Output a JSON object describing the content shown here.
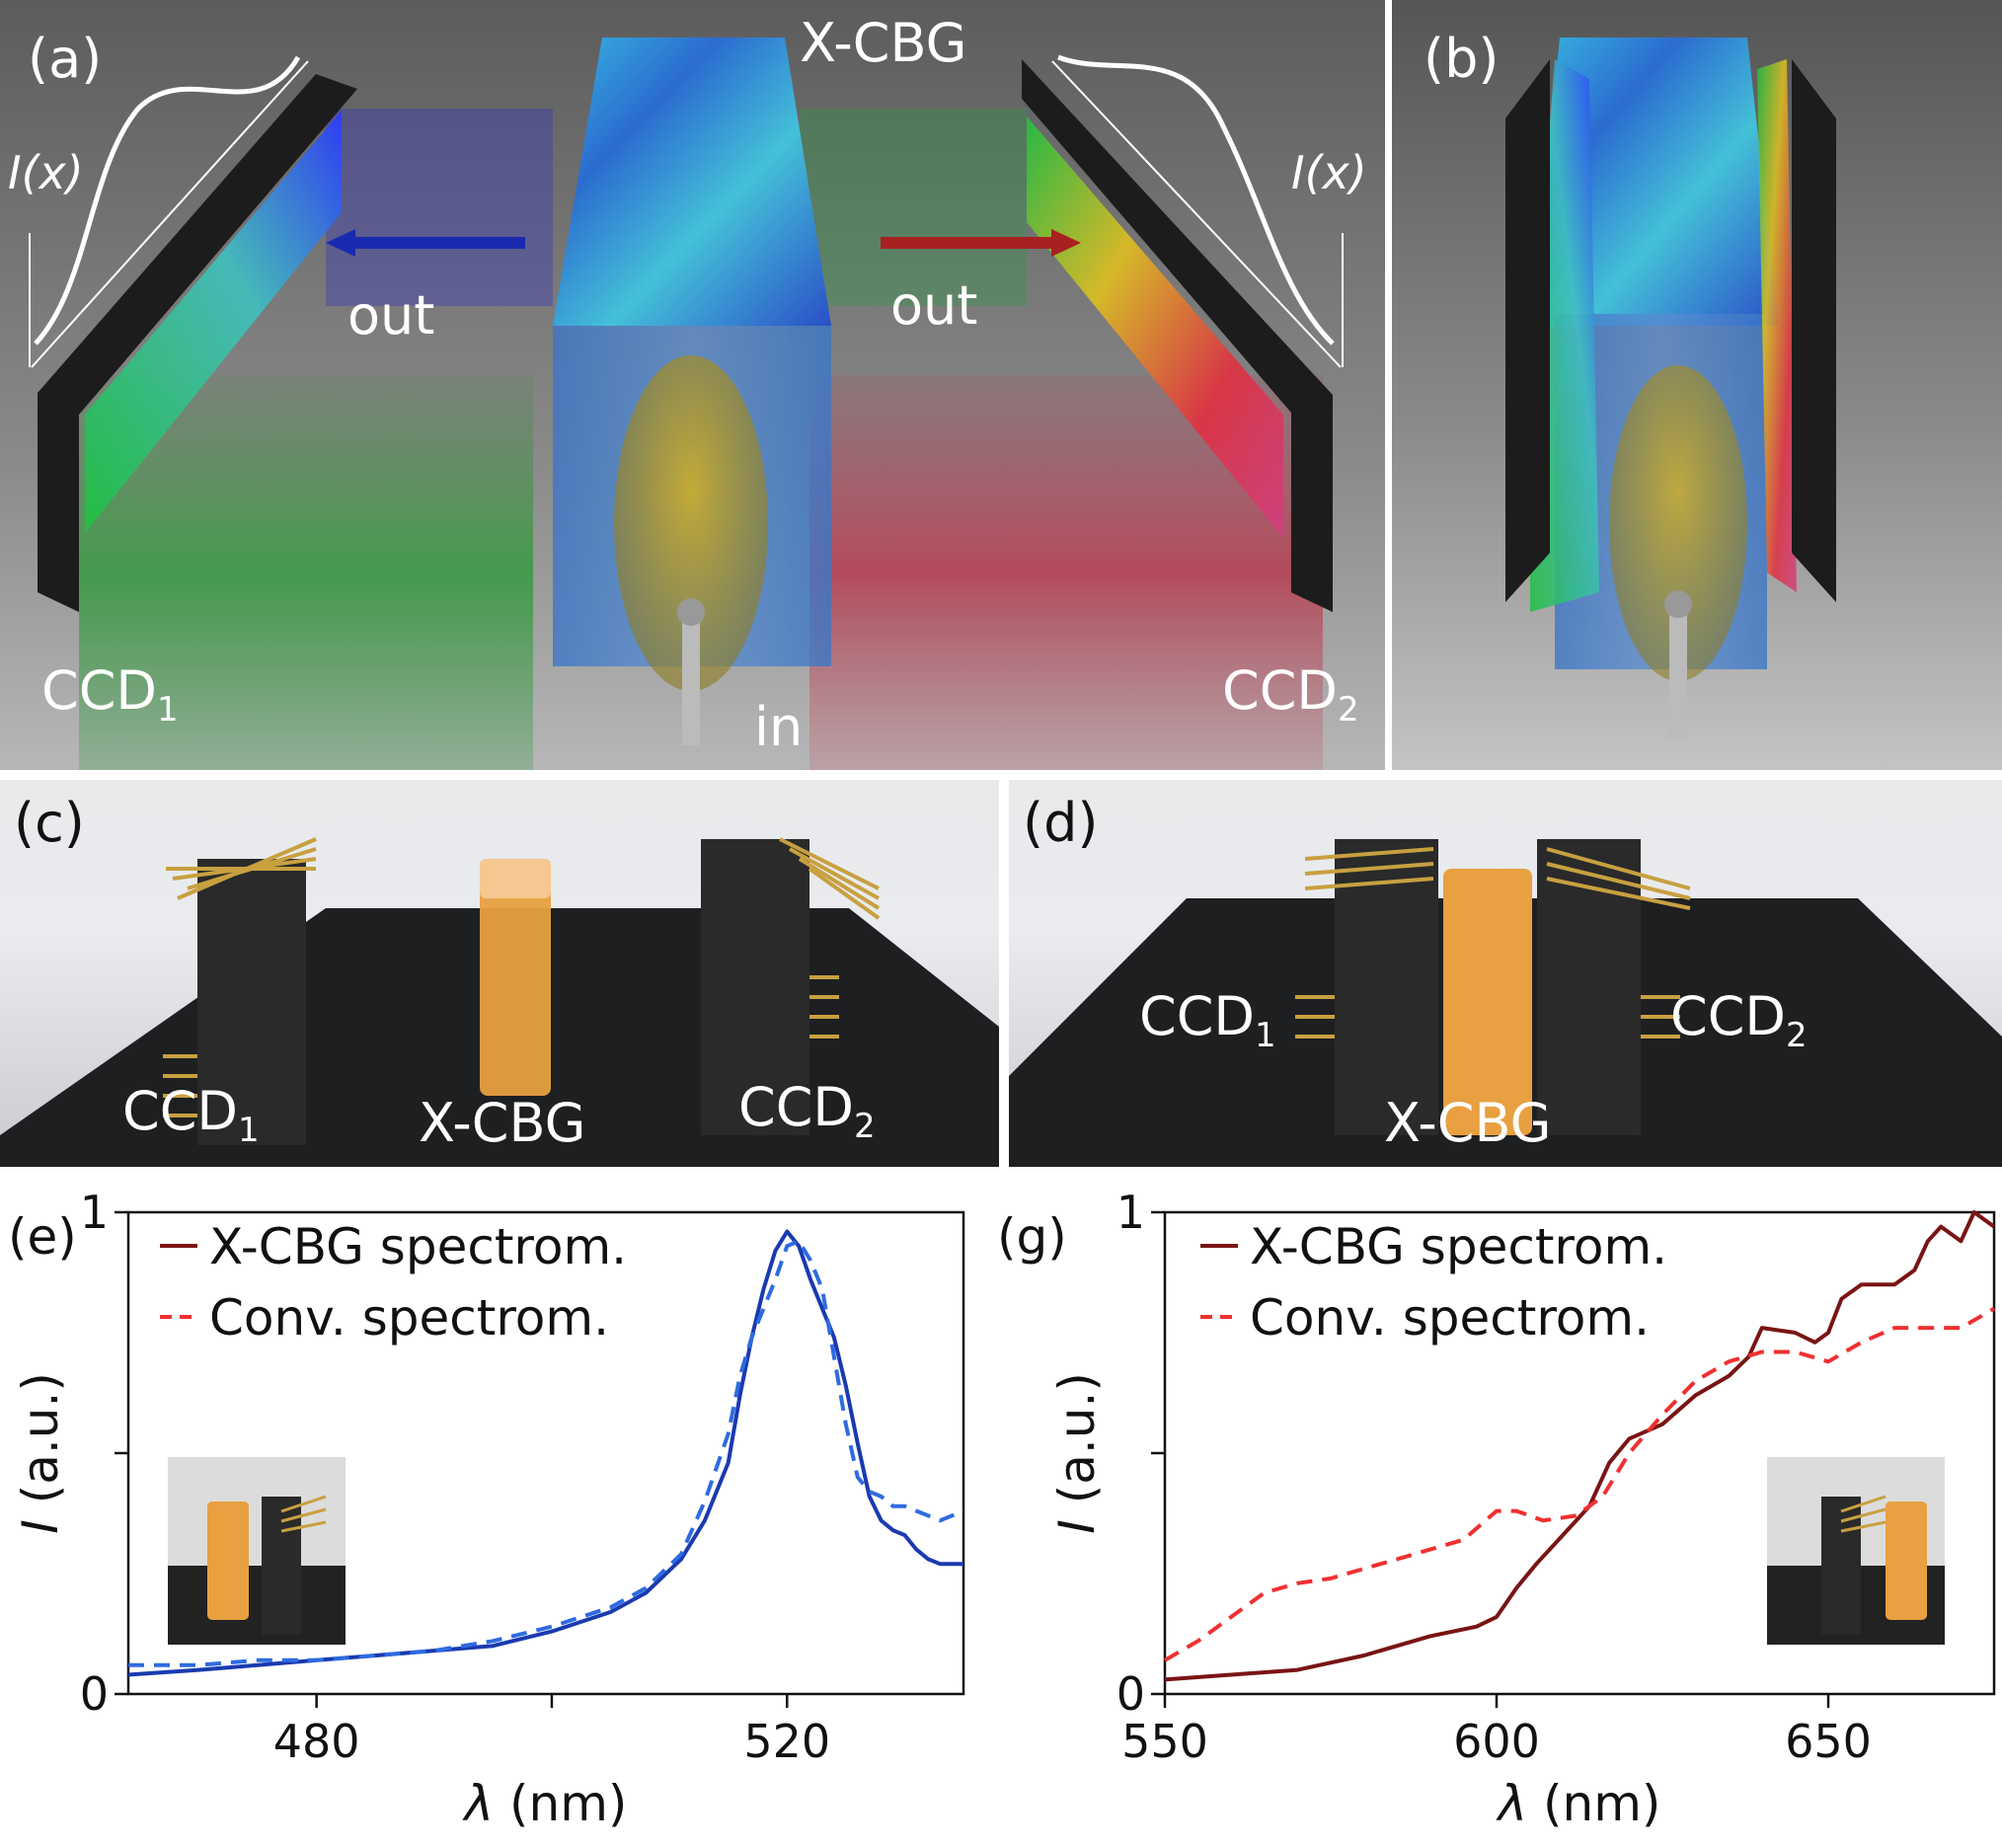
{
  "panels": {
    "a": {
      "label": "(a)",
      "grating": "X-CBG",
      "out_left": "out",
      "out_right": "out",
      "in": "in",
      "ccd1": "CCD",
      "ccd1_sub": "1",
      "ccd2": "CCD",
      "ccd2_sub": "2",
      "intensity_left": "I(x)",
      "intensity_right": "I(x)"
    },
    "b": {
      "label": "(b)"
    },
    "c": {
      "label": "(c)",
      "ccd1": "CCD",
      "ccd1_sub": "1",
      "grating": "X-CBG",
      "ccd2": "CCD",
      "ccd2_sub": "2"
    },
    "d": {
      "label": "(d)",
      "ccd1": "CCD",
      "ccd1_sub": "1",
      "grating": "X-CBG",
      "ccd2": "CCD",
      "ccd2_sub": "2"
    }
  },
  "colors": {
    "xcbg": "#7a1414",
    "conv_red": "#f03030",
    "blue_solid": "#1a3ab0",
    "blue_dashed": "#2e6be0"
  },
  "chart_data": [
    {
      "panel_label": "(e)",
      "type": "line",
      "xlabel_symbol": "λ",
      "xlabel_unit": "(nm)",
      "ylabel_symbol": "I",
      "ylabel_unit": "(a.u.)",
      "xlim": [
        464,
        535
      ],
      "ylim": [
        0,
        1
      ],
      "xticks": [
        480,
        520
      ],
      "yticks": [
        0,
        1
      ],
      "yticks_unlabeled": [
        0.5
      ],
      "legend": [
        "X-CBG spectrom.",
        "Conv. spectrom."
      ],
      "legend_colors": [
        "#7a1414",
        "#f03030"
      ],
      "series": [
        {
          "style": "solid",
          "color": "#1a3ab0",
          "x": [
            464,
            470,
            475,
            480,
            485,
            490,
            495,
            500,
            505,
            508,
            511,
            513,
            515,
            516,
            517,
            518,
            519,
            520,
            521,
            522,
            523,
            524,
            525,
            526,
            527,
            528,
            529,
            530,
            531,
            532,
            533,
            535
          ],
          "y": [
            0.04,
            0.05,
            0.06,
            0.07,
            0.08,
            0.09,
            0.1,
            0.13,
            0.17,
            0.21,
            0.28,
            0.36,
            0.48,
            0.62,
            0.74,
            0.84,
            0.92,
            0.96,
            0.93,
            0.86,
            0.8,
            0.74,
            0.64,
            0.52,
            0.41,
            0.36,
            0.34,
            0.33,
            0.3,
            0.28,
            0.27,
            0.27
          ]
        },
        {
          "style": "dashed",
          "color": "#2e6be0",
          "x": [
            464,
            470,
            475,
            480,
            485,
            490,
            495,
            500,
            505,
            508,
            511,
            513,
            515,
            516,
            517,
            518,
            519,
            520,
            521,
            522,
            523,
            524,
            525,
            526,
            527,
            528,
            529,
            530,
            531,
            532,
            533,
            535
          ],
          "y": [
            0.06,
            0.06,
            0.07,
            0.07,
            0.08,
            0.09,
            0.11,
            0.14,
            0.18,
            0.22,
            0.29,
            0.4,
            0.54,
            0.66,
            0.74,
            0.8,
            0.86,
            0.93,
            0.94,
            0.9,
            0.84,
            0.7,
            0.56,
            0.45,
            0.42,
            0.41,
            0.39,
            0.39,
            0.38,
            0.37,
            0.36,
            0.38
          ]
        }
      ]
    },
    {
      "panel_label": "(g)",
      "type": "line",
      "xlabel_symbol": "λ",
      "xlabel_unit": "(nm)",
      "ylabel_symbol": "I",
      "ylabel_unit": "(a.u.)",
      "xlim": [
        550,
        675
      ],
      "ylim": [
        0,
        1
      ],
      "xticks": [
        550,
        600,
        650
      ],
      "yticks": [
        0,
        1
      ],
      "yticks_unlabeled": [
        0.5
      ],
      "legend": [
        "X-CBG spectrom.",
        "Conv. spectrom."
      ],
      "legend_colors": [
        "#7a1414",
        "#f03030"
      ],
      "series": [
        {
          "style": "solid",
          "color": "#7a1414",
          "x": [
            550,
            560,
            570,
            580,
            590,
            597,
            600,
            603,
            606,
            610,
            614,
            617,
            620,
            625,
            630,
            635,
            638,
            640,
            645,
            648,
            650,
            652,
            655,
            660,
            663,
            665,
            667,
            670,
            672,
            675
          ],
          "y": [
            0.03,
            0.04,
            0.05,
            0.08,
            0.12,
            0.14,
            0.16,
            0.22,
            0.27,
            0.33,
            0.39,
            0.48,
            0.53,
            0.56,
            0.62,
            0.66,
            0.7,
            0.76,
            0.75,
            0.73,
            0.75,
            0.82,
            0.85,
            0.85,
            0.88,
            0.94,
            0.97,
            0.94,
            1.0,
            0.97
          ]
        },
        {
          "style": "dashed",
          "color": "#f03030",
          "x": [
            550,
            555,
            560,
            565,
            570,
            575,
            580,
            585,
            590,
            595,
            600,
            603,
            607,
            612,
            616,
            620,
            625,
            630,
            635,
            640,
            645,
            650,
            655,
            660,
            665,
            670,
            675
          ],
          "y": [
            0.07,
            0.11,
            0.16,
            0.21,
            0.23,
            0.24,
            0.26,
            0.28,
            0.3,
            0.32,
            0.38,
            0.38,
            0.36,
            0.37,
            0.41,
            0.5,
            0.58,
            0.65,
            0.69,
            0.71,
            0.71,
            0.69,
            0.73,
            0.76,
            0.76,
            0.76,
            0.8
          ]
        }
      ]
    }
  ]
}
